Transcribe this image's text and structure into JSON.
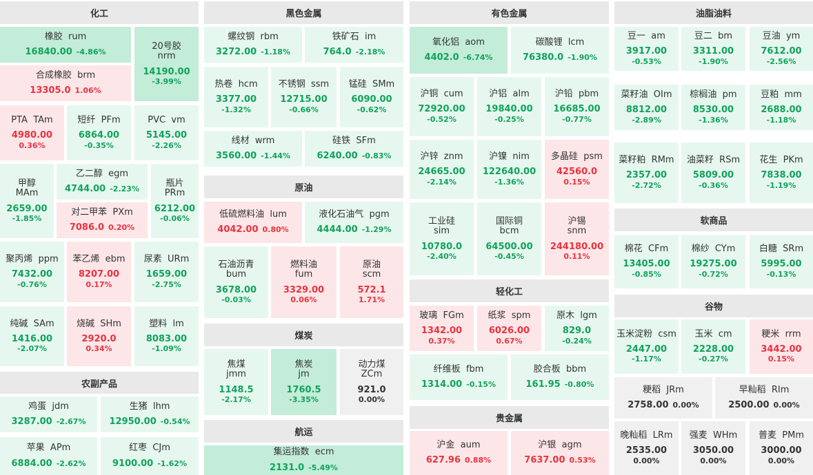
{
  "sections": [
    {
      "title": "化工"
    },
    {
      "title": "黑色金属"
    },
    {
      "title": "有色金属"
    },
    {
      "title": "油脂油料"
    },
    {
      "title": "原油"
    },
    {
      "title": "农副产品"
    },
    {
      "title": "煤炭"
    },
    {
      "title": "航运"
    },
    {
      "title": "轻化工"
    },
    {
      "title": "软商品"
    },
    {
      "title": "谷物"
    },
    {
      "title": "贵金属"
    }
  ],
  "tiles": [
    {
      "name": "橡胶  rum",
      "price": "16840.00",
      "change": "-4.86%"
    },
    {
      "name": "20号胶|nrm",
      "price": "14190.00",
      "change": "-3.99%"
    },
    {
      "name": "合成橡胶  brm",
      "price": "13305.0",
      "change": "1.06%"
    },
    {
      "name": "PTA  TAm",
      "price": "4980.00",
      "change": "0.36%"
    },
    {
      "name": "短纤  PFm",
      "price": "6864.00",
      "change": "-0.35%"
    },
    {
      "name": "PVC  vm",
      "price": "5145.00",
      "change": "-2.26%"
    },
    {
      "name": "甲醇|MAm",
      "price": "2659.00",
      "change": "-1.85%"
    },
    {
      "name": "乙二醇  egm",
      "price": "4744.00",
      "change": "-2.23%"
    },
    {
      "name": "瓶片|PRm",
      "price": "6212.00",
      "change": "-0.06%"
    },
    {
      "name": "对二甲苯  PXm",
      "price": "7086.0",
      "change": "0.20%"
    },
    {
      "name": "聚丙烯  ppm",
      "price": "7432.00",
      "change": "-0.76%"
    },
    {
      "name": "苯乙烯  ebm",
      "price": "8207.00",
      "change": "0.17%"
    },
    {
      "name": "尿素  URm",
      "price": "1659.00",
      "change": "-2.75%"
    },
    {
      "name": "纯碱  SAm",
      "price": "1416.00",
      "change": "-2.07%"
    },
    {
      "name": "烧碱  SHm",
      "price": "2920.0",
      "change": "0.34%"
    },
    {
      "name": "塑料  lm",
      "price": "8083.00",
      "change": "-1.09%"
    },
    {
      "name": "鸡蛋  jdm",
      "price": "3287.00",
      "change": "-2.67%"
    },
    {
      "name": "生猪  lhm",
      "price": "12950.00",
      "change": "-0.54%"
    },
    {
      "name": "苹果  APm",
      "price": "6884.00",
      "change": "-2.62%"
    },
    {
      "name": "红枣  CJm",
      "price": "9100.00",
      "change": "-1.62%"
    },
    {
      "name": "螺纹钢  rbm",
      "price": "3272.00",
      "change": "-1.18%"
    },
    {
      "name": "铁矿石  im",
      "price": "764.0",
      "change": "-2.18%"
    },
    {
      "name": "热卷  hcm",
      "price": "3377.00",
      "change": "-1.32%"
    },
    {
      "name": "不锈钢  ssm",
      "price": "12715.00",
      "change": "-0.66%"
    },
    {
      "name": "锰硅  SMm",
      "price": "6090.00",
      "change": "-0.62%"
    },
    {
      "name": "线材  wrm",
      "price": "3560.00",
      "change": "-1.44%"
    },
    {
      "name": "硅铁  SFm",
      "price": "6240.00",
      "change": "-0.83%"
    },
    {
      "name": "低硫燃料油  lum",
      "price": "4042.00",
      "change": "0.80%"
    },
    {
      "name": "液化石油气  pgm",
      "price": "4444.00",
      "change": "-1.29%"
    },
    {
      "name": "石油沥青|bum",
      "price": "3678.00",
      "change": "-0.03%"
    },
    {
      "name": "燃料油|fum",
      "price": "3329.00",
      "change": "0.06%"
    },
    {
      "name": "原油|scm",
      "price": "572.1",
      "change": "1.71%"
    },
    {
      "name": "焦煤|jmm",
      "price": "1148.5",
      "change": "-2.17%"
    },
    {
      "name": "焦炭|jm",
      "price": "1760.5",
      "change": "-3.35%"
    },
    {
      "name": "动力煤|ZCm",
      "price": "921.0",
      "change": "0.00%"
    },
    {
      "name": "集运指数  ecm",
      "price": "2131.0",
      "change": "-5.49%"
    },
    {
      "name": "氧化铝  aom",
      "price": "4402.0",
      "change": "-6.74%"
    },
    {
      "name": "碳酸锂  lcm",
      "price": "76380.0",
      "change": "-1.90%"
    },
    {
      "name": "沪铜  cum",
      "price": "72920.00",
      "change": "-0.52%"
    },
    {
      "name": "沪铝  alm",
      "price": "19840.00",
      "change": "-0.25%"
    },
    {
      "name": "沪铅  pbm",
      "price": "16685.00",
      "change": "-0.77%"
    },
    {
      "name": "沪锌  znm",
      "price": "24665.00",
      "change": "-2.14%"
    },
    {
      "name": "沪镍  nim",
      "price": "122640.00",
      "change": "-1.36%"
    },
    {
      "name": "多晶硅  psm",
      "price": "42560.0",
      "change": "0.15%"
    },
    {
      "name": "工业硅|sim",
      "price": "10780.0",
      "change": "-2.40%"
    },
    {
      "name": "国际铜|bcm",
      "price": "64500.00",
      "change": "-0.45%"
    },
    {
      "name": "沪锡|snm",
      "price": "244180.00",
      "change": "0.11%"
    },
    {
      "name": "玻璃  FGm",
      "price": "1342.00",
      "change": "0.37%"
    },
    {
      "name": "纸浆  spm",
      "price": "6026.00",
      "change": "0.67%"
    },
    {
      "name": "原木  lgm",
      "price": "829.0",
      "change": "-0.24%"
    },
    {
      "name": "纤维板  fbm",
      "price": "1314.00",
      "change": "-0.15%"
    },
    {
      "name": "胶合板  bbm",
      "price": "161.95",
      "change": "-0.80%"
    },
    {
      "name": "沪金  aum",
      "price": "627.96",
      "change": "0.88%"
    },
    {
      "name": "沪银  agm",
      "price": "7637.00",
      "change": "0.53%"
    },
    {
      "name": "豆一  am",
      "price": "3917.00",
      "change": "-0.53%"
    },
    {
      "name": "豆二  bm",
      "price": "3311.00",
      "change": "-1.90%"
    },
    {
      "name": "豆油  ym",
      "price": "7612.00",
      "change": "-2.56%"
    },
    {
      "name": "菜籽油  OIm",
      "price": "8812.00",
      "change": "-2.89%"
    },
    {
      "name": "棕榈油  pm",
      "price": "8530.00",
      "change": "-1.36%"
    },
    {
      "name": "豆粕  mm",
      "price": "2688.00",
      "change": "-1.18%"
    },
    {
      "name": "菜籽粕  RMm",
      "price": "2357.00",
      "change": "-2.72%"
    },
    {
      "name": "油菜籽  RSm",
      "price": "5809.00",
      "change": "-0.36%"
    },
    {
      "name": "花生  PKm",
      "price": "7838.00",
      "change": "-1.19%"
    },
    {
      "name": "棉花  CFm",
      "price": "13405.00",
      "change": "-0.85%"
    },
    {
      "name": "棉纱  CYm",
      "price": "19275.00",
      "change": "-0.72%"
    },
    {
      "name": "白糖  SRm",
      "price": "5995.00",
      "change": "-0.13%"
    },
    {
      "name": "玉米淀粉  csm",
      "price": "2447.00",
      "change": "-1.17%"
    },
    {
      "name": "玉米  cm",
      "price": "2228.00",
      "change": "-0.27%"
    },
    {
      "name": "粳米  rrm",
      "price": "3442.00",
      "change": "0.15%"
    },
    {
      "name": "粳稻  JRm",
      "price": "2758.00",
      "change": "0.00%"
    },
    {
      "name": "早籼稻  RIm",
      "price": "2500.00",
      "change": "0.00%"
    },
    {
      "name": "晚籼稻  LRm",
      "price": "2535.00",
      "change": "0.00%"
    },
    {
      "name": "强麦  WHm",
      "price": "3050.00",
      "change": "0.00%"
    },
    {
      "name": "普麦  PMm",
      "price": "3000.00",
      "change": "0.00%"
    }
  ]
}
